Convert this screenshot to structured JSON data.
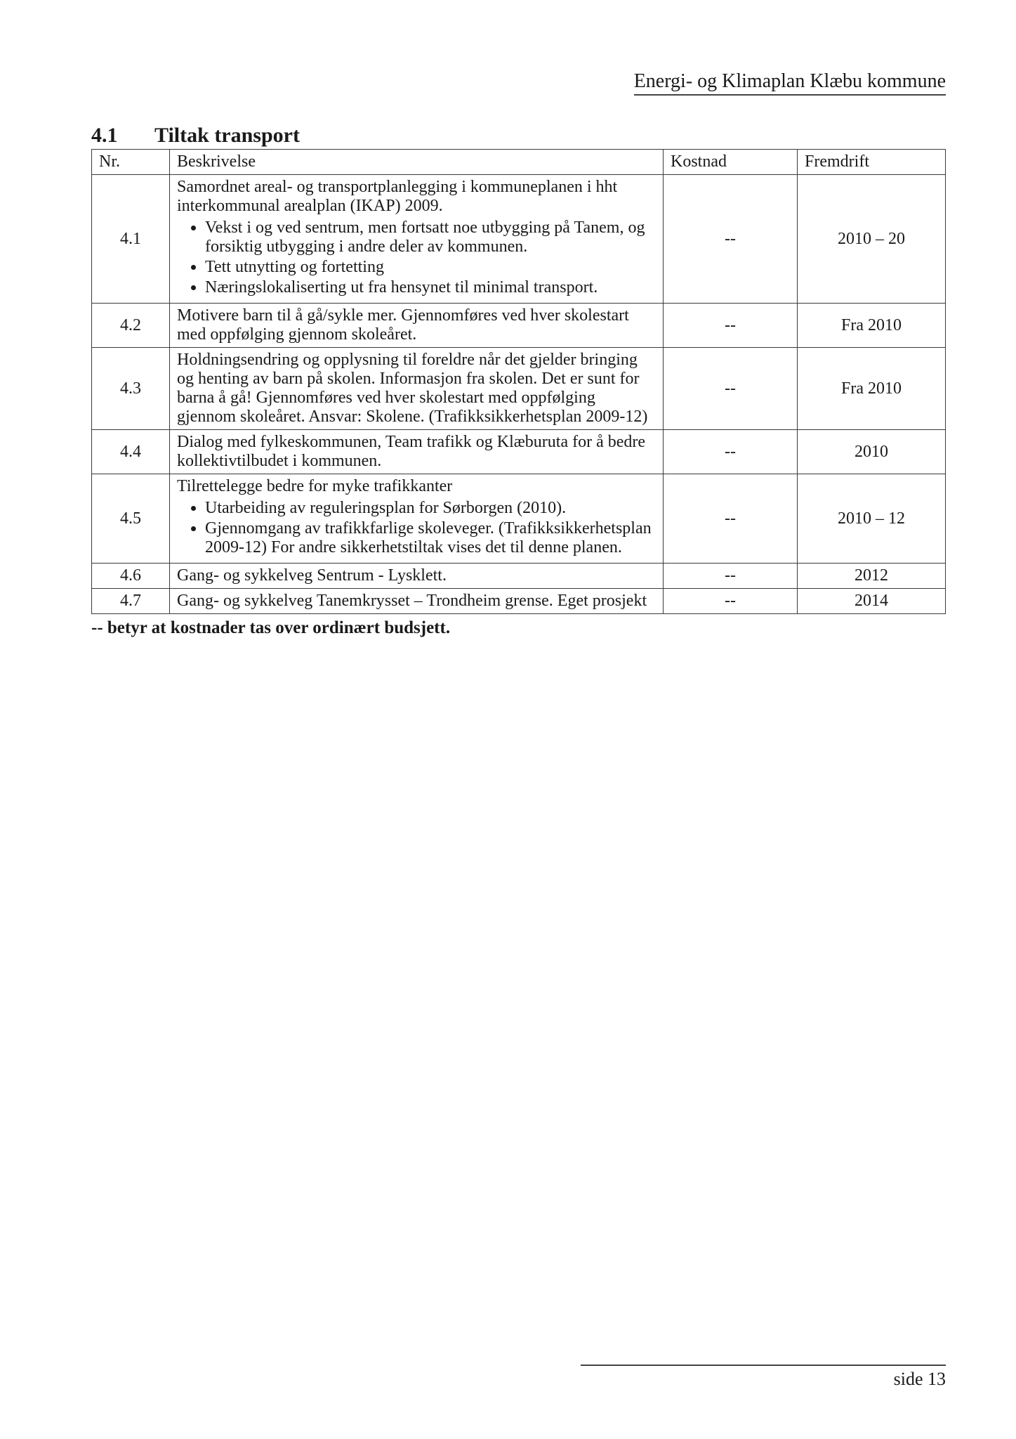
{
  "header": {
    "doc_title": "Energi- og Klimaplan Klæbu kommune"
  },
  "section": {
    "number": "4.1",
    "title": "Tiltak transport"
  },
  "table": {
    "columns": {
      "nr": "Nr.",
      "beskrivelse": "Beskrivelse",
      "kostnad": "Kostnad",
      "fremdrift": "Fremdrift"
    },
    "rows": [
      {
        "nr": "4.1",
        "intro": "Samordnet areal- og transportplanlegging i kommuneplanen i hht interkommunal arealplan (IKAP) 2009.",
        "bullets": [
          "Vekst i og ved sentrum, men fortsatt noe utbygging på Tanem, og forsiktig utbygging i andre deler av kommunen.",
          "Tett utnytting og fortetting",
          "Næringslokaliserting ut fra hensynet til minimal transport."
        ],
        "kostnad": "--",
        "fremdrift": "2010 – 20"
      },
      {
        "nr": "4.2",
        "intro": "Motivere barn til å gå/sykle mer. Gjennomføres ved hver skolestart med oppfølging gjennom skoleåret.",
        "bullets": [],
        "kostnad": "--",
        "fremdrift": "Fra 2010"
      },
      {
        "nr": "4.3",
        "intro": "Holdningsendring og opplysning til foreldre når det gjelder bringing og henting av barn på skolen. Informasjon fra skolen. Det er sunt for barna å gå! Gjennomføres ved hver skolestart med oppfølging gjennom skoleåret. Ansvar: Skolene. (Trafikksikkerhetsplan 2009-12)",
        "bullets": [],
        "kostnad": "--",
        "fremdrift": "Fra 2010"
      },
      {
        "nr": "4.4",
        "intro": "Dialog med fylkeskommunen, Team trafikk og Klæburuta for å bedre kollektivtilbudet i kommunen.",
        "bullets": [],
        "kostnad": "--",
        "fremdrift": "2010"
      },
      {
        "nr": "4.5",
        "intro": "Tilrettelegge bedre for myke trafikkanter",
        "bullets": [
          "Utarbeiding av reguleringsplan for Sørborgen (2010).",
          "Gjennomgang av trafikkfarlige skoleveger. (Trafikksikkerhetsplan 2009-12) For andre sikkerhetstiltak vises det til denne planen."
        ],
        "kostnad": "--",
        "fremdrift": "2010 – 12"
      },
      {
        "nr": "4.6",
        "intro": "Gang- og sykkelveg Sentrum - Lysklett.",
        "bullets": [],
        "kostnad": "--",
        "fremdrift": "2012"
      },
      {
        "nr": "4.7",
        "intro": "Gang- og sykkelveg Tanemkrysset – Trondheim grense. Eget prosjekt",
        "bullets": [],
        "kostnad": "--",
        "fremdrift": "2014"
      }
    ]
  },
  "footnote": "-- betyr at kostnader tas over ordinært budsjett.",
  "footer": {
    "page_label": "side 13"
  }
}
